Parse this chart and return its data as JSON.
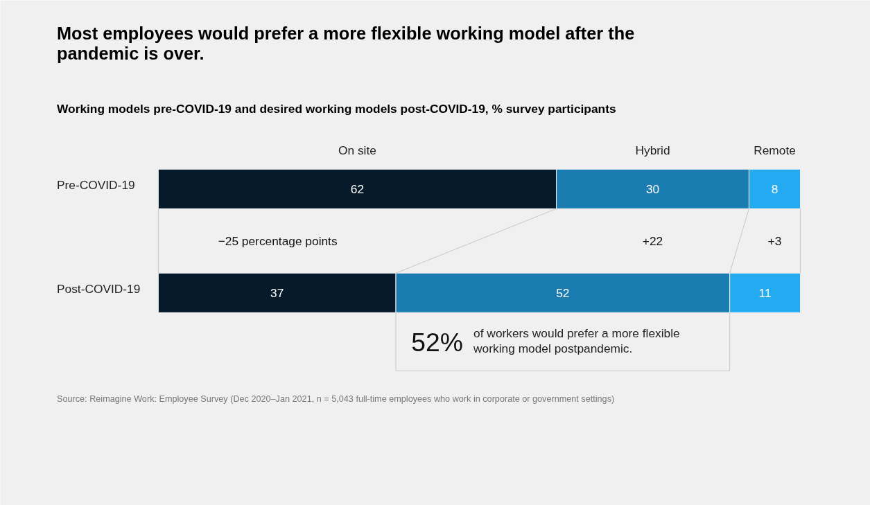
{
  "chart_data": {
    "type": "bar",
    "orientation": "horizontal",
    "stacked": true,
    "data_labels": true,
    "legend": false,
    "grid": false,
    "title": "Most employees would prefer a more flexible working model after the pandemic is over.",
    "subtitle": "Working models pre-COVID-19 and desired working models post-COVID-19, % survey participants",
    "categories": [
      "Pre-COVID-19",
      "Post-COVID-19"
    ],
    "series": [
      {
        "name": "On site",
        "color": "#061a2b",
        "values": [
          62,
          37
        ]
      },
      {
        "name": "Hybrid",
        "color": "#1a7cb0",
        "values": [
          30,
          52
        ]
      },
      {
        "name": "Remote",
        "color": "#23aaf0",
        "values": [
          8,
          11
        ]
      }
    ],
    "annotations": [
      "−25 percentage points",
      "+22",
      "+3",
      "52% of workers would prefer a more flexible working model postpandemic.",
      "Source: Reimagine Work: Employee Survey (Dec 2020–Jan 2021, n = 5,043 full-time employees who work in corporate or government settings)"
    ]
  }
}
